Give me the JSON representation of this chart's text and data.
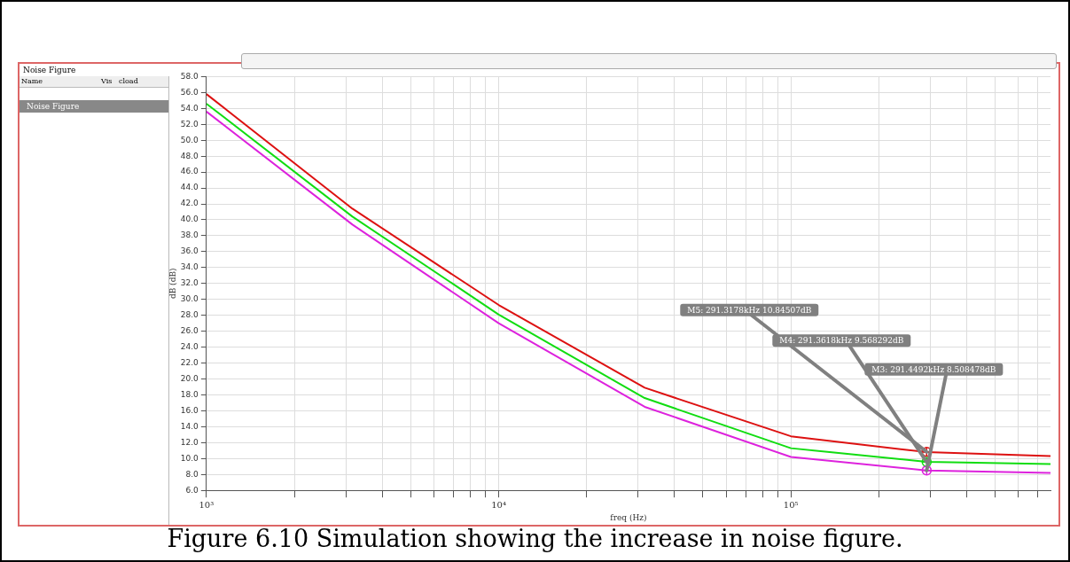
{
  "chart_data": {
    "type": "line",
    "title": "Noise Figure",
    "xlabel": "freq (Hz)",
    "ylabel": "dB (dB)",
    "log": "x",
    "grid": true,
    "legend": false,
    "marker": "none",
    "line_style": "solid",
    "xlim": [
      1000,
      773000
    ],
    "xticks": [
      {
        "value": 1000,
        "label": "10³"
      },
      {
        "value": 2000,
        "label": null
      },
      {
        "value": 3000,
        "label": null
      },
      {
        "value": 4000,
        "label": null
      },
      {
        "value": 5000,
        "label": null
      },
      {
        "value": 6000,
        "label": null
      },
      {
        "value": 7000,
        "label": null
      },
      {
        "value": 8000,
        "label": null
      },
      {
        "value": 9000,
        "label": null
      },
      {
        "value": 10000,
        "label": "10⁴"
      },
      {
        "value": 20000,
        "label": null
      },
      {
        "value": 30000,
        "label": null
      },
      {
        "value": 40000,
        "label": null
      },
      {
        "value": 50000,
        "label": null
      },
      {
        "value": 60000,
        "label": null
      },
      {
        "value": 70000,
        "label": null
      },
      {
        "value": 80000,
        "label": null
      },
      {
        "value": 90000,
        "label": null
      },
      {
        "value": 100000,
        "label": "10⁵"
      },
      {
        "value": 200000,
        "label": null
      },
      {
        "value": 300000,
        "label": null
      },
      {
        "value": 400000,
        "label": null
      },
      {
        "value": 500000,
        "label": null
      },
      {
        "value": 600000,
        "label": null
      },
      {
        "value": 700000,
        "label": null
      }
    ],
    "ylim": [
      6,
      58
    ],
    "yticks": [
      {
        "value": 6,
        "label": "6.0"
      },
      {
        "value": 8,
        "label": "8.0"
      },
      {
        "value": 10,
        "label": "10.0"
      },
      {
        "value": 12,
        "label": "12.0"
      },
      {
        "value": 14,
        "label": "14.0"
      },
      {
        "value": 16,
        "label": "16.0"
      },
      {
        "value": 18,
        "label": "18.0"
      },
      {
        "value": 20,
        "label": "20.0"
      },
      {
        "value": 22,
        "label": "22.0"
      },
      {
        "value": 24,
        "label": "24.0"
      },
      {
        "value": 26,
        "label": "26.0"
      },
      {
        "value": 28,
        "label": "28.0"
      },
      {
        "value": 30,
        "label": "30.0"
      },
      {
        "value": 32,
        "label": "32.0"
      },
      {
        "value": 34,
        "label": "34.0"
      },
      {
        "value": 36,
        "label": "36.0"
      },
      {
        "value": 38,
        "label": "38.0"
      },
      {
        "value": 40,
        "label": "40.0"
      },
      {
        "value": 42,
        "label": "42.0"
      },
      {
        "value": 44,
        "label": "44.0"
      },
      {
        "value": 46,
        "label": "46.0"
      },
      {
        "value": 48,
        "label": "48.0"
      },
      {
        "value": 50,
        "label": "50.0"
      },
      {
        "value": 52,
        "label": "52.0"
      },
      {
        "value": 54,
        "label": "54.0"
      },
      {
        "value": 56,
        "label": "56.0"
      },
      {
        "value": 58,
        "label": "58.0"
      }
    ],
    "x": [
      1000,
      3160,
      10000,
      31600,
      100000,
      291300,
      773000
    ],
    "series": [
      {
        "color": "#dd1111",
        "values": [
          55.8,
          41.4,
          29.3,
          18.9,
          12.8,
          10.8,
          10.3
        ]
      },
      {
        "color": "#11dd11",
        "values": [
          54.6,
          40.4,
          28.1,
          17.6,
          11.3,
          9.6,
          9.3
        ]
      },
      {
        "color": "#dd22dd",
        "values": [
          53.6,
          39.4,
          27.0,
          16.5,
          10.2,
          8.5,
          8.2
        ]
      }
    ],
    "annotations": [
      "Name",
      "Vis",
      "cload",
      "Noise Figure",
      {
        "text": "M5: 291.3178kHz 10.84507dB",
        "x": 291317.8,
        "y": 10.84507
      },
      {
        "text": "M4: 291.3618kHz 9.568292dB",
        "x": 291361.8,
        "y": 9.568292
      },
      {
        "text": "M3: 291.4492kHz 8.508478dB",
        "x": 291449.2,
        "y": 8.508478
      },
      "Figure 6.10 Simulation showing the increase in noise figure."
    ]
  }
}
